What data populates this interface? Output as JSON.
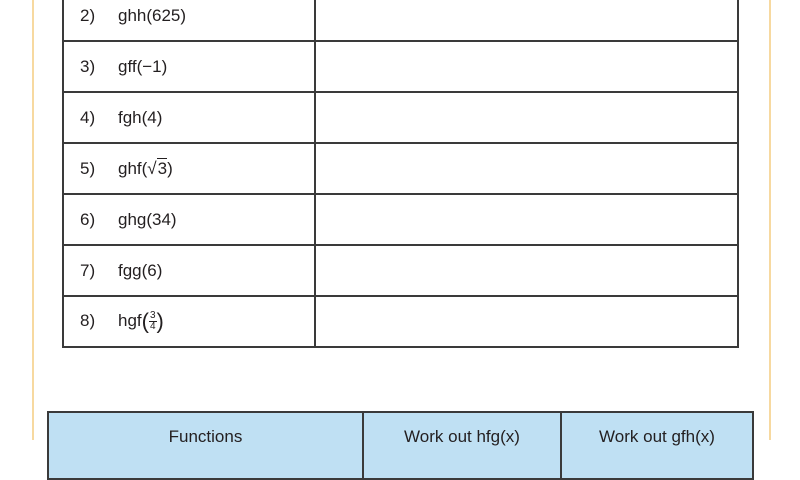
{
  "questions": [
    {
      "num": "2)",
      "expr": "ghh(625)"
    },
    {
      "num": "3)",
      "expr": "gff(−1)"
    },
    {
      "num": "4)",
      "expr": "fgh(4)"
    },
    {
      "num": "5)",
      "expr_prefix": "ghf(",
      "sqrt_arg": "3",
      "expr_suffix": ")"
    },
    {
      "num": "6)",
      "expr": "ghg(34)"
    },
    {
      "num": "7)",
      "expr": "fgg(6)"
    },
    {
      "num": "8)",
      "expr_prefix": "hgf",
      "frac_num": "3",
      "frac_den": "4"
    }
  ],
  "functions_table": {
    "headers": [
      "Functions",
      "Work out hfg(x)",
      "Work out gfh(x)"
    ]
  },
  "colors": {
    "frame": "#f7d9a0",
    "header_bg": "#bfe0f3"
  }
}
